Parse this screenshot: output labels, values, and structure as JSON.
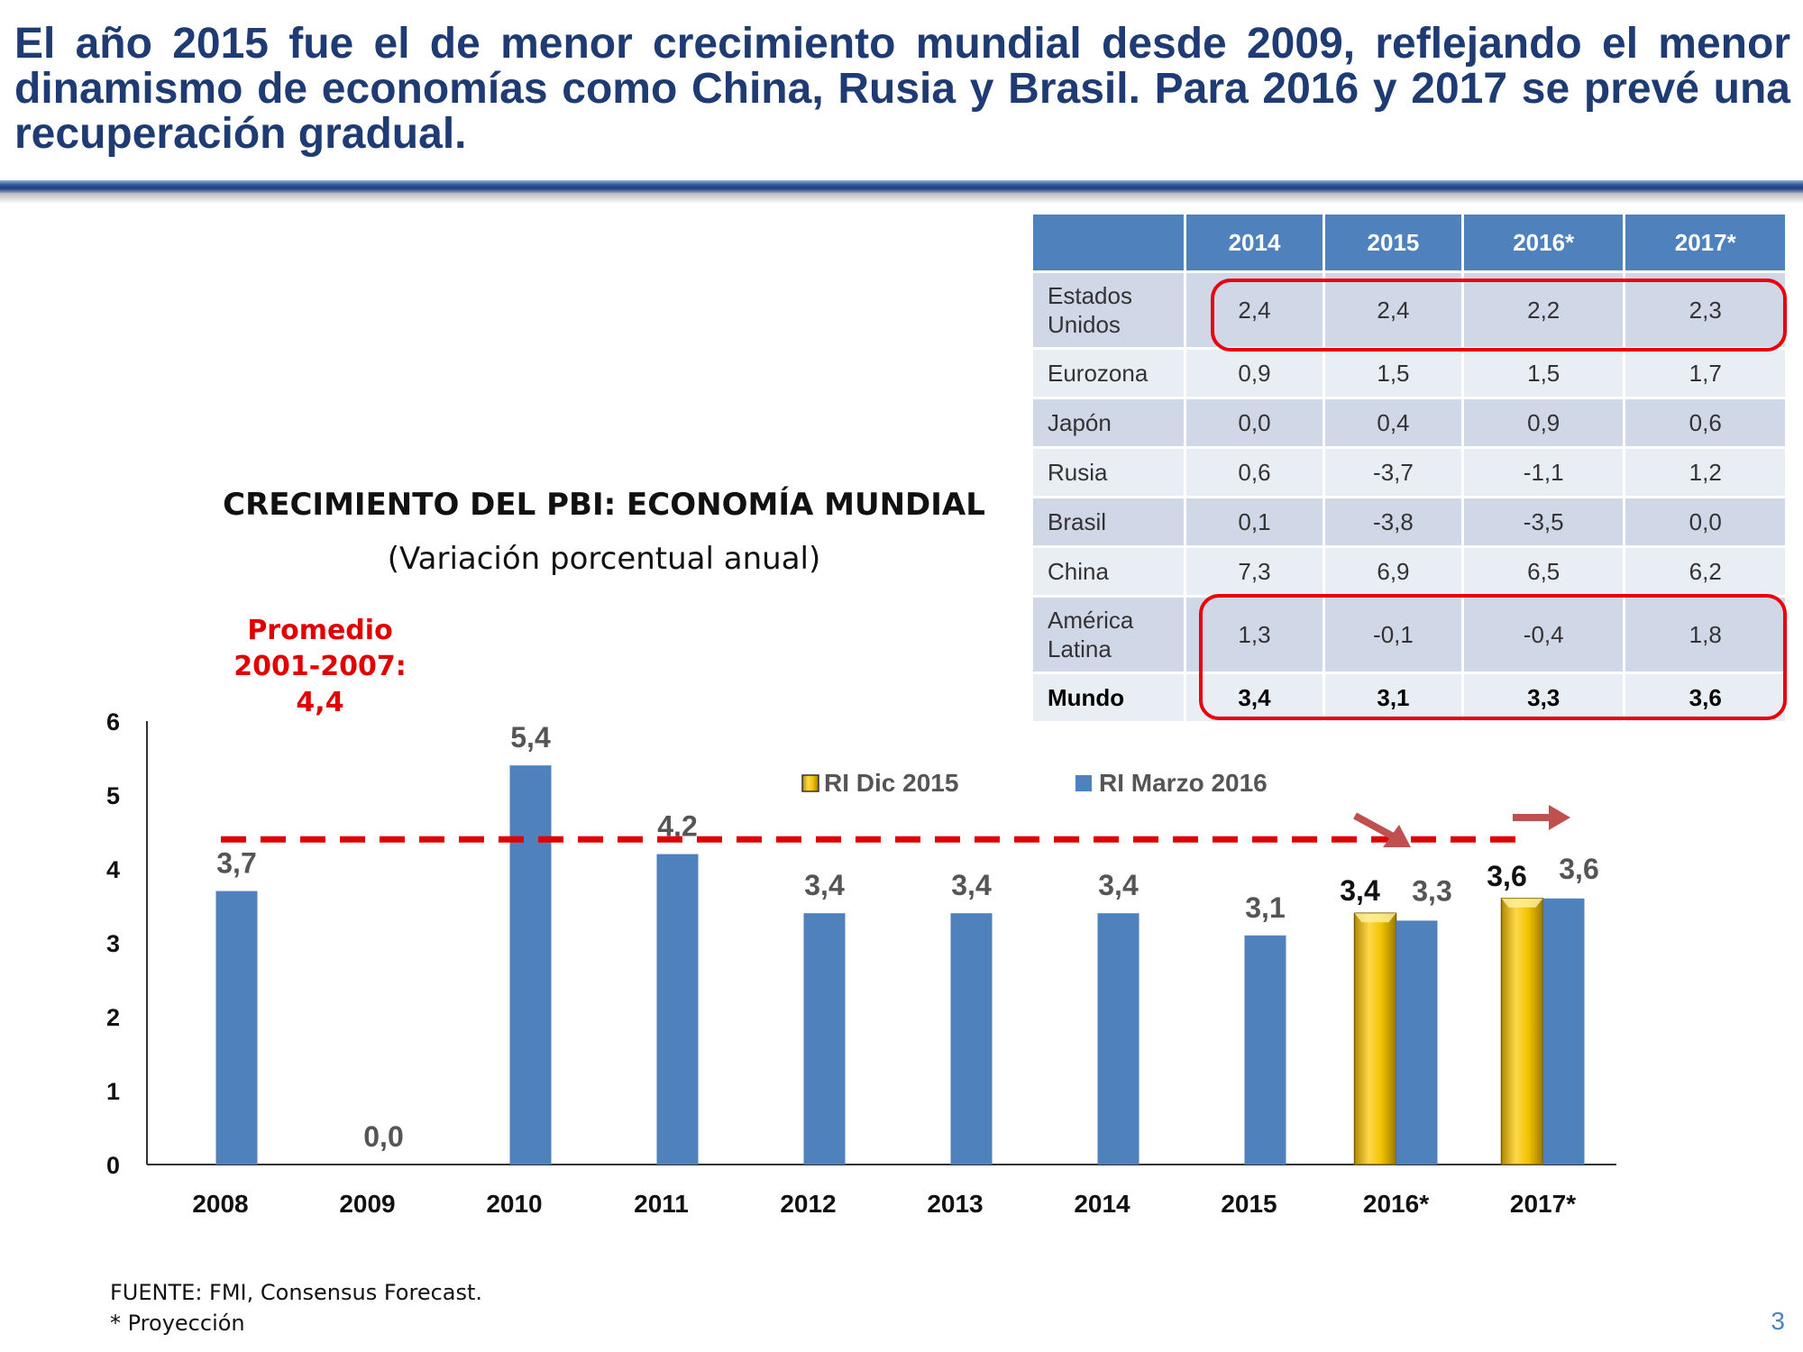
{
  "headline": "El año 2015 fue el de menor crecimiento mundial desde 2009, reflejando el menor dinamismo de economías como China, Rusia y Brasil. Para 2016 y 2017 se prevé una recuperación gradual.",
  "table": {
    "columns": [
      "",
      "2014",
      "2015",
      "2016*",
      "2017*"
    ],
    "rows": [
      {
        "country": "Estados Unidos",
        "values": [
          "2,4",
          "2,4",
          "2,2",
          "2,3"
        ]
      },
      {
        "country": "Eurozona",
        "values": [
          "0,9",
          "1,5",
          "1,5",
          "1,7"
        ]
      },
      {
        "country": "Japón",
        "values": [
          "0,0",
          "0,4",
          "0,9",
          "0,6"
        ]
      },
      {
        "country": "Rusia",
        "values": [
          "0,6",
          "-3,7",
          "-1,1",
          "1,2"
        ]
      },
      {
        "country": "Brasil",
        "values": [
          "0,1",
          "-3,8",
          "-3,5",
          "0,0"
        ]
      },
      {
        "country": "China",
        "values": [
          "7,3",
          "6,9",
          "6,5",
          "6,2"
        ]
      },
      {
        "country": "América Latina",
        "values": [
          "1,3",
          "-0,1",
          "-0,4",
          "1,8"
        ]
      },
      {
        "country": "Mundo",
        "values": [
          "3,4",
          "3,1",
          "3,3",
          "3,6"
        ]
      }
    ]
  },
  "chart_data": {
    "type": "bar",
    "title": "CRECIMIENTO DEL PBI: ECONOMÍA MUNDIAL",
    "subtitle": "(Variación porcentual anual)",
    "categories": [
      "2008",
      "2009",
      "2010",
      "2011",
      "2012",
      "2013",
      "2014",
      "2015",
      "2016*",
      "2017*"
    ],
    "series": [
      {
        "name": "RI Dic 2015",
        "color": "#f2c200",
        "values": [
          null,
          null,
          null,
          null,
          null,
          null,
          null,
          null,
          3.4,
          3.6
        ],
        "labels": [
          null,
          null,
          null,
          null,
          null,
          null,
          null,
          null,
          "3,4",
          "3,6"
        ]
      },
      {
        "name": "RI Marzo 2016",
        "color": "#4f81bd",
        "values": [
          3.7,
          0.0,
          5.4,
          4.2,
          3.4,
          3.4,
          3.4,
          3.1,
          3.3,
          3.6
        ],
        "labels": [
          "3,7",
          "0,0",
          "5,4",
          "4,2",
          "3,4",
          "3,4",
          "3,4",
          "3,1",
          "3,3",
          "3,6"
        ]
      }
    ],
    "yticks": [
      "0",
      "1",
      "2",
      "3",
      "4",
      "5",
      "6"
    ],
    "ylim": [
      0,
      6
    ],
    "reference_line": {
      "value": 4.4,
      "color": "#e00000",
      "label_lines": [
        "Promedio",
        "2001-2007:",
        "4,4"
      ]
    },
    "legend_placement": "top"
  },
  "footnote": {
    "source": "FUENTE: FMI, Consensus Forecast.",
    "note": "* Proyección"
  },
  "page_number": "3"
}
